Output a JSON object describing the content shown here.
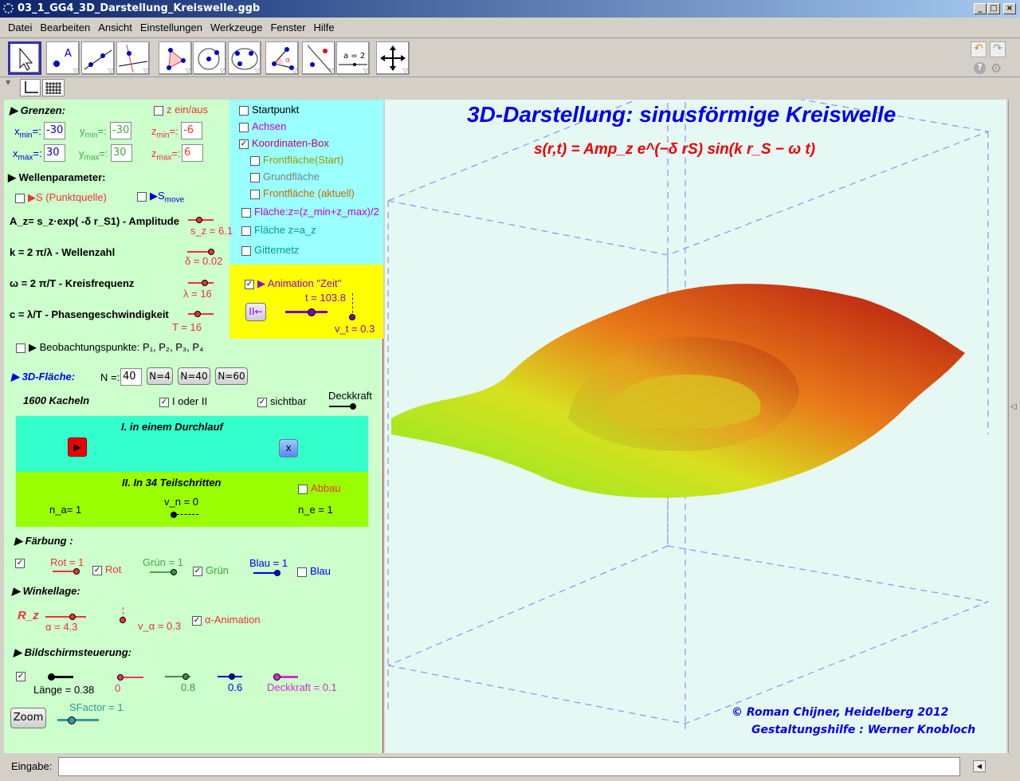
{
  "window": {
    "title": "03_1_GG4_3D_Darstellung_Kreiswelle.ggb",
    "controls": [
      "_",
      "□",
      "×"
    ]
  },
  "menu": [
    "Datei",
    "Bearbeiten",
    "Ansicht",
    "Einstellungen",
    "Werkzeuge",
    "Fenster",
    "Hilfe"
  ],
  "toolbar": {
    "tools": [
      "move-tool",
      "point-tool",
      "line-tool",
      "perpendicular-tool",
      "polygon-tool",
      "circle-tool",
      "conic-tool",
      "angle-tool",
      "reflect-tool",
      "slider-tool",
      "move-view-tool"
    ],
    "slider_icon_text": "a = 2"
  },
  "left": {
    "grenzen": "Grenzen:",
    "z_toggle": "z ein/aus",
    "xmin_label": "x",
    "xmin_sub": "min",
    "xmin": "-30",
    "xmax_label": "x",
    "xmax_sub": "max",
    "xmax": "30",
    "ymin_label": "y",
    "ymin_sub": "min",
    "ymin": "-30",
    "ymax_label": "y",
    "ymax_sub": "max",
    "ymax": "30",
    "zmin_label": "z",
    "zmin_sub": "min",
    "zmin": "-6",
    "zmax_label": "z",
    "zmax_sub": "max",
    "zmax": "6",
    "eq": "=:",
    "wellenparameter": "Wellenparameter:",
    "s_punkt": "S (Punktquelle)",
    "s_move": "S",
    "s_move_sub": "move",
    "amplitude": "A_z= s_z·exp( -δ r_S1)   - Amplitude",
    "sz": "s_z = 6.1",
    "wellenzahl": "k = 2 π/λ  - Wellenzahl",
    "delta": "δ = 0.02",
    "kreisfrequenz": "ω = 2 π/T   - Kreisfrequenz",
    "lambda": "λ = 16",
    "phasen": "c = λ/T  - Phasengeschwindigkeit",
    "T": "T = 16",
    "beobachtung": "Beobachtungspunkte:  P₁, P₂, P₃, P₄",
    "flaeche": "3D-Fläche:",
    "n_label": "N =:",
    "n_value": "40",
    "n_buttons": [
      "N=4",
      "N=40",
      "N=60"
    ],
    "kacheln": "1600 Kacheln",
    "i_oder_ii": "I oder II",
    "sichtbar": "sichtbar",
    "deckkraft": "Deckkraft",
    "durchlauf": "I. in einem Durchlauf",
    "x_button": "x",
    "teilschritte": "II. In 34 Teilschritten",
    "abbau": "Abbau",
    "na": "n_a= 1",
    "vn": "v_n = 0",
    "ne": "n_e = 1",
    "faerbung": "Färbung :",
    "rot_val": "Rot = 1",
    "rot": "Rot",
    "gruen_val": "Grün = 1",
    "gruen": "Grün",
    "blau_val": "Blau = 1",
    "blau": "Blau",
    "winkellage": "Winkellage:",
    "rz": "R_z",
    "alpha": "α = 4.3",
    "valpha": "v_α = 0.3",
    "alpha_anim": "α-Animation",
    "bildschirm": "Bildschirmsteuerung:",
    "laenge": "Länge = 0.38",
    "v0": "0",
    "v08": "0.8",
    "v06": "0.6",
    "deckkraft01": "Deckkraft = 0.1",
    "zoom": "Zoom",
    "sfactor": "SFactor = 1"
  },
  "cyan": {
    "items": [
      {
        "label": "Startpunkt",
        "checked": false,
        "color": "#000000"
      },
      {
        "label": "Achsen",
        "checked": false,
        "color": "#cc00cc"
      },
      {
        "label": "Koordinaten-Box",
        "checked": true,
        "color": "#cc0066"
      },
      {
        "label": "Frontfläche(Start)",
        "checked": false,
        "color": "#999900"
      },
      {
        "label": "Grundfläche",
        "checked": false,
        "color": "#808080"
      },
      {
        "label": "Frontfläche (aktuell)",
        "checked": false,
        "color": "#cc6600"
      },
      {
        "label": "Fläche:z=(z_min+z_max)/2",
        "checked": false,
        "color": "#cc00cc"
      },
      {
        "label": "Fläche z=a_z",
        "checked": false,
        "color": "#009999"
      },
      {
        "label": "Gitternetz",
        "checked": false,
        "color": "#009999"
      }
    ]
  },
  "animation": {
    "label": "Animation \"Zeit\"",
    "checked": true,
    "t": "t = 103.8",
    "vt": "v_t = 0.3",
    "pause_button": "II←"
  },
  "graphics": {
    "title": "3D-Darstellung: sinusförmige Kreiswelle",
    "formula": "s(r,t) = Amp_z e^(−δ rS) sin(k r_S − ω t)",
    "credit1": "© Roman Chijner, Heidelberg 2012",
    "credit2": "Gestaltungshilfe : Werner Knobloch"
  },
  "input": {
    "label": "Eingabe:",
    "value": ""
  },
  "colors": {
    "left_bg": "#ccffcc",
    "cyan": "#99ffff",
    "yellow": "#ffff00",
    "title_blue": "#0000ee",
    "formula_red": "#ee0000"
  }
}
